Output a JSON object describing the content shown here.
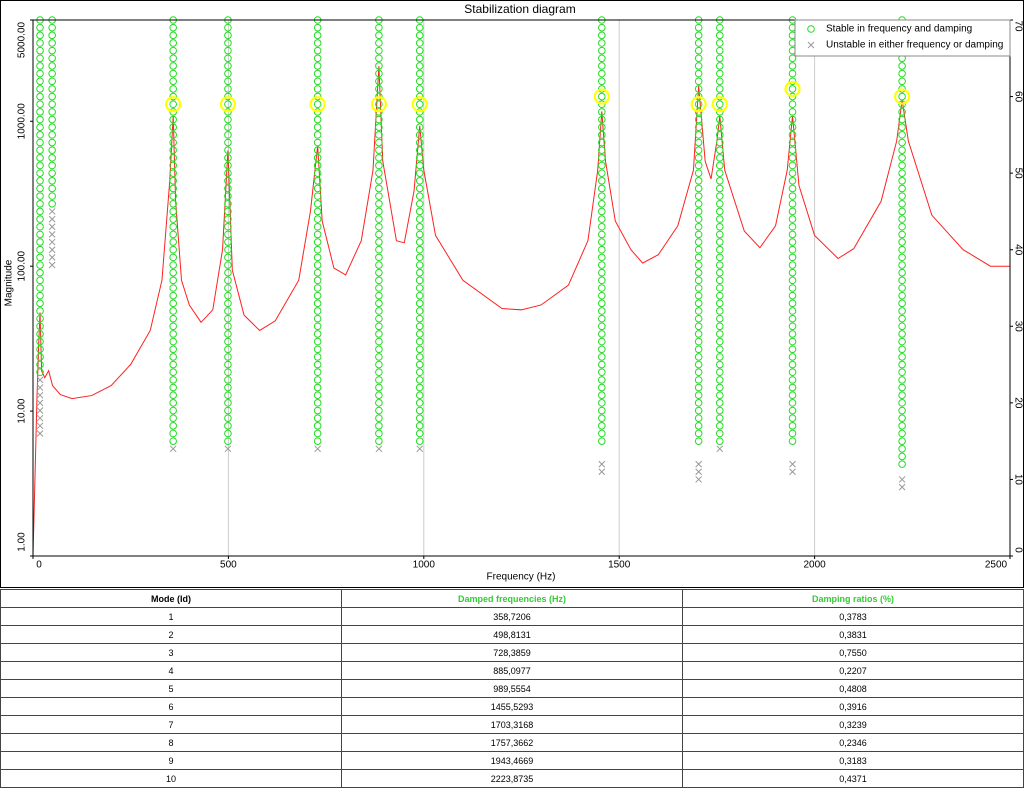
{
  "chart_data": {
    "type": "line",
    "title": "Stabilization diagram",
    "x_label": "Frequency (Hz)",
    "y_label": "Magnitude",
    "xlim": [
      0,
      2500
    ],
    "xticks": [
      0,
      500,
      1000,
      1500,
      2000,
      2500
    ],
    "ylim": [
      1,
      5000
    ],
    "log_y": true,
    "yticks": [
      {
        "value": 1,
        "label": "1.00"
      },
      {
        "value": 10,
        "label": "10.00"
      },
      {
        "value": 100,
        "label": "100.00"
      },
      {
        "value": 1000,
        "label": "1000.00"
      },
      {
        "value": 5000,
        "label": "5000.00"
      }
    ],
    "y2lim": [
      0,
      70
    ],
    "y2ticks": [
      0,
      10,
      20,
      30,
      40,
      50,
      60,
      70
    ],
    "grid_x": true,
    "legend": "upper right",
    "x": [
      0,
      5,
      10,
      15,
      18,
      22,
      30,
      40,
      50,
      70,
      100,
      150,
      200,
      250,
      300,
      330,
      350,
      358.7,
      365,
      380,
      400,
      430,
      460,
      485,
      498.8,
      510,
      540,
      580,
      620,
      680,
      710,
      728.4,
      740,
      770,
      800,
      840,
      870,
      885.1,
      895,
      930,
      950,
      975,
      989.6,
      1000,
      1030,
      1100,
      1200,
      1250,
      1300,
      1370,
      1420,
      1445,
      1455.5,
      1465,
      1490,
      1530,
      1560,
      1600,
      1650,
      1690,
      1703.3,
      1720,
      1735,
      1750,
      1757.4,
      1770,
      1820,
      1860,
      1900,
      1930,
      1943.5,
      1960,
      2000,
      2060,
      2100,
      2170,
      2210,
      2223.9,
      2240,
      2300,
      2380,
      2450,
      2500
    ],
    "series": [
      {
        "color": "#ff2020",
        "values": [
          1,
          3.4,
          12,
          31,
          48,
          19,
          17,
          19,
          15,
          13,
          12.2,
          12.8,
          15,
          21,
          36,
          80,
          390,
          1090,
          280,
          80,
          54,
          41,
          50,
          130,
          630,
          94,
          46,
          36,
          42,
          80,
          240,
          680,
          205,
          97,
          87,
          150,
          460,
          2400,
          530,
          150,
          145,
          330,
          930,
          460,
          163,
          80,
          51,
          50,
          54,
          74,
          150,
          460,
          1170,
          530,
          205,
          130,
          105,
          120,
          190,
          460,
          1750,
          530,
          400,
          730,
          1090,
          460,
          175,
          134,
          190,
          460,
          1090,
          360,
          163,
          113,
          132,
          280,
          730,
          1400,
          730,
          225,
          130,
          100,
          100
        ]
      }
    ],
    "markers": [
      {
        "name": "Stable in frequency and damping",
        "color": "#22dd22",
        "marker": "circle",
        "axis": "y2",
        "groups": [
          {
            "x": 18,
            "values": [
              24,
              25,
              26,
              27,
              28,
              29,
              30,
              31,
              32,
              33,
              34,
              35,
              36,
              37,
              38,
              39,
              40,
              41,
              42,
              43,
              44,
              45,
              46,
              47,
              48,
              49,
              50,
              51,
              52,
              53,
              54,
              55,
              56,
              57,
              58,
              59,
              60,
              61,
              62,
              63,
              64,
              65,
              66,
              67,
              68,
              69,
              70
            ]
          },
          {
            "x": 49,
            "values": [
              46,
              47,
              48,
              49,
              50,
              51,
              52,
              53,
              54,
              55,
              56,
              57,
              58,
              59,
              60,
              61,
              62,
              63,
              64,
              65,
              66,
              67,
              68,
              69,
              70
            ]
          },
          {
            "x": 358.7,
            "values": [
              15,
              16,
              17,
              18,
              19,
              20,
              21,
              22,
              23,
              24,
              25,
              26,
              27,
              28,
              29,
              30,
              31,
              32,
              33,
              34,
              35,
              36,
              37,
              38,
              39,
              40,
              41,
              42,
              43,
              44,
              45,
              46,
              47,
              48,
              49,
              50,
              51,
              52,
              53,
              54,
              55,
              56,
              57,
              58,
              59,
              60,
              61,
              62,
              63,
              64,
              65,
              66,
              67,
              68,
              69,
              70
            ]
          },
          {
            "x": 498.8,
            "values": [
              15,
              16,
              17,
              18,
              19,
              20,
              21,
              22,
              23,
              24,
              25,
              26,
              27,
              28,
              29,
              30,
              31,
              32,
              33,
              34,
              35,
              36,
              37,
              38,
              39,
              40,
              41,
              42,
              43,
              44,
              45,
              46,
              47,
              48,
              49,
              50,
              51,
              52,
              53,
              54,
              55,
              56,
              57,
              58,
              59,
              60,
              61,
              62,
              63,
              64,
              65,
              66,
              67,
              68,
              69,
              70
            ]
          },
          {
            "x": 728.4,
            "values": [
              15,
              16,
              17,
              18,
              19,
              20,
              21,
              22,
              23,
              24,
              25,
              26,
              27,
              28,
              29,
              30,
              31,
              32,
              33,
              34,
              35,
              36,
              37,
              38,
              39,
              40,
              41,
              42,
              43,
              44,
              45,
              46,
              47,
              48,
              49,
              50,
              51,
              52,
              53,
              54,
              55,
              56,
              57,
              58,
              59,
              60,
              61,
              62,
              63,
              64,
              65,
              66,
              67,
              68,
              69,
              70
            ]
          },
          {
            "x": 885.1,
            "values": [
              15,
              16,
              17,
              18,
              19,
              20,
              21,
              22,
              23,
              24,
              25,
              26,
              27,
              28,
              29,
              30,
              31,
              32,
              33,
              34,
              35,
              36,
              37,
              38,
              39,
              40,
              41,
              42,
              43,
              44,
              45,
              46,
              47,
              48,
              49,
              50,
              51,
              52,
              53,
              54,
              55,
              56,
              57,
              58,
              59,
              60,
              61,
              62,
              63,
              64,
              65,
              66,
              67,
              68,
              69,
              70
            ]
          },
          {
            "x": 989.6,
            "values": [
              15,
              16,
              17,
              18,
              19,
              20,
              21,
              22,
              23,
              24,
              25,
              26,
              27,
              28,
              29,
              30,
              31,
              32,
              33,
              34,
              35,
              36,
              37,
              38,
              39,
              40,
              41,
              42,
              43,
              44,
              45,
              46,
              47,
              48,
              49,
              50,
              51,
              52,
              53,
              54,
              55,
              56,
              57,
              58,
              59,
              60,
              61,
              62,
              63,
              64,
              65,
              66,
              67,
              68,
              69,
              70
            ]
          },
          {
            "x": 1455.5,
            "values": [
              15,
              16,
              17,
              18,
              19,
              20,
              21,
              22,
              23,
              24,
              25,
              26,
              27,
              28,
              29,
              30,
              31,
              32,
              33,
              34,
              35,
              36,
              37,
              38,
              39,
              40,
              41,
              42,
              43,
              44,
              45,
              46,
              47,
              48,
              49,
              50,
              51,
              52,
              53,
              54,
              55,
              56,
              57,
              58,
              59,
              60,
              61,
              62,
              63,
              64,
              65,
              66,
              67,
              68,
              69,
              70
            ]
          },
          {
            "x": 1703.3,
            "values": [
              15,
              16,
              17,
              18,
              19,
              20,
              21,
              22,
              23,
              24,
              25,
              26,
              27,
              28,
              29,
              30,
              31,
              32,
              33,
              34,
              35,
              36,
              37,
              38,
              39,
              40,
              41,
              42,
              43,
              44,
              45,
              46,
              47,
              48,
              49,
              50,
              51,
              52,
              53,
              54,
              55,
              56,
              57,
              58,
              59,
              60,
              61,
              62,
              63,
              64,
              65,
              66,
              67,
              68,
              69,
              70
            ]
          },
          {
            "x": 1757.4,
            "values": [
              15,
              16,
              17,
              18,
              19,
              20,
              21,
              22,
              23,
              24,
              25,
              26,
              27,
              28,
              29,
              30,
              31,
              32,
              33,
              34,
              35,
              36,
              37,
              38,
              39,
              40,
              41,
              42,
              43,
              44,
              45,
              46,
              47,
              48,
              49,
              50,
              51,
              52,
              53,
              54,
              55,
              56,
              57,
              58,
              59,
              60,
              61,
              62,
              63,
              64,
              65,
              66,
              67,
              68,
              69,
              70
            ]
          },
          {
            "x": 1943.5,
            "values": [
              15,
              16,
              17,
              18,
              19,
              20,
              21,
              22,
              23,
              24,
              25,
              26,
              27,
              28,
              29,
              30,
              31,
              32,
              33,
              34,
              35,
              36,
              37,
              38,
              39,
              40,
              41,
              42,
              43,
              44,
              45,
              46,
              47,
              48,
              49,
              50,
              51,
              52,
              53,
              54,
              55,
              56,
              57,
              58,
              59,
              60,
              61,
              62,
              63,
              64,
              65,
              66,
              67,
              68,
              69,
              70
            ]
          },
          {
            "x": 2223.9,
            "values": [
              12,
              13,
              14,
              15,
              16,
              17,
              18,
              19,
              20,
              21,
              22,
              23,
              24,
              25,
              26,
              27,
              28,
              29,
              30,
              31,
              32,
              33,
              34,
              35,
              36,
              37,
              38,
              39,
              40,
              41,
              42,
              43,
              44,
              45,
              46,
              47,
              48,
              49,
              50,
              51,
              52,
              53,
              54,
              55,
              56,
              57,
              58,
              59,
              60,
              61,
              62,
              63,
              64,
              65,
              66,
              67,
              68,
              69,
              70
            ]
          }
        ]
      },
      {
        "name": "Unstable in either frequency or damping",
        "color": "#999999",
        "marker": "cross",
        "axis": "y2",
        "groups": [
          {
            "x": 18,
            "values": [
              16,
              17,
              18,
              19,
              20,
              21,
              22,
              23
            ]
          },
          {
            "x": 49,
            "values": [
              38,
              39,
              40,
              41,
              42,
              43,
              44,
              45
            ]
          },
          {
            "x": 358.7,
            "values": [
              14
            ]
          },
          {
            "x": 498.8,
            "values": [
              14
            ]
          },
          {
            "x": 728.4,
            "values": [
              14
            ]
          },
          {
            "x": 885.1,
            "values": [
              14
            ]
          },
          {
            "x": 989.6,
            "values": [
              14
            ]
          },
          {
            "x": 1455.5,
            "values": [
              11,
              12
            ]
          },
          {
            "x": 1703.3,
            "values": [
              10,
              11,
              12
            ]
          },
          {
            "x": 1757.4,
            "values": [
              14
            ]
          },
          {
            "x": 1943.5,
            "values": [
              11,
              12
            ]
          },
          {
            "x": 2223.9,
            "values": [
              9,
              10
            ]
          }
        ]
      }
    ],
    "selected": {
      "color": "#ffff00",
      "axis": "y2",
      "x": [
        358.7,
        498.8,
        728.4,
        885.1,
        989.6,
        1455.5,
        1703.3,
        1757.4,
        1943.5,
        2223.9
      ],
      "values": [
        59,
        59,
        59,
        59,
        59,
        60,
        59,
        59,
        61,
        60
      ]
    }
  },
  "table": {
    "columns": [
      "Mode (Id)",
      "Damped frequencies (Hz)",
      "Damping ratios (%)"
    ],
    "rows": [
      [
        "1",
        "358,7206",
        "0,3783"
      ],
      [
        "2",
        "498,8131",
        "0,3831"
      ],
      [
        "3",
        "728,3859",
        "0,7550"
      ],
      [
        "4",
        "885,0977",
        "0,2207"
      ],
      [
        "5",
        "989,5554",
        "0,4808"
      ],
      [
        "6",
        "1455,5293",
        "0,3916"
      ],
      [
        "7",
        "1703,3168",
        "0,3239"
      ],
      [
        "8",
        "1757,3662",
        "0,2346"
      ],
      [
        "9",
        "1943,4669",
        "0,3183"
      ],
      [
        "10",
        "2223,8735",
        "0,4371"
      ]
    ]
  }
}
